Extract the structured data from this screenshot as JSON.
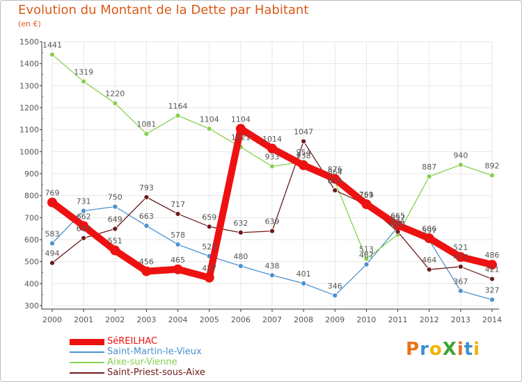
{
  "header": {
    "title": "Evolution du Montant de la Dette par Habitant",
    "subtitle": "(en €)"
  },
  "logo": {
    "text": "ProXiti",
    "colors": [
      "#e8721c",
      "#3b8fd0",
      "#f2b200",
      "#3fa535",
      "#e8721c",
      "#3b8fd0",
      "#f2b200"
    ]
  },
  "colors": {
    "title": "#d95a17",
    "axis": "#555555",
    "grid": "#e6e6e6"
  },
  "chart_data": {
    "type": "line",
    "x": [
      "2000",
      "2001",
      "2002",
      "2003",
      "2004",
      "2005",
      "2006",
      "2007",
      "2008",
      "2009",
      "2010",
      "2011",
      "2012",
      "2013",
      "2014"
    ],
    "ylim": [
      300,
      1500
    ],
    "yticks": [
      300,
      400,
      500,
      600,
      700,
      800,
      900,
      1000,
      1100,
      1200,
      1300,
      1400,
      1500
    ],
    "title": "Evolution du Montant de la Dette par Habitant",
    "ylabel": "(en €)",
    "grid": true,
    "legend_position": "bottom-left",
    "series": [
      {
        "name": "SéREILHAC",
        "color": "#ee1111",
        "width": 9,
        "values": [
          769,
          662,
          551,
          456,
          465,
          427,
          1104,
          1014,
          938,
          876,
          761,
          665,
          606,
          521,
          486
        ]
      },
      {
        "name": "Saint-Martin-le-Vieux",
        "color": "#4a90d0",
        "width": 1,
        "values": [
          583,
          731,
          750,
          663,
          578,
          525,
          480,
          438,
          401,
          346,
          487,
          657,
          597,
          367,
          327
        ]
      },
      {
        "name": "Aixe-sur-Vienne",
        "color": "#86d04e",
        "width": 1,
        "values": [
          1441,
          1319,
          1220,
          1081,
          1164,
          1104,
          1021,
          933,
          954,
          864,
          513,
          623,
          887,
          940,
          892
        ]
      },
      {
        "name": "Saint-Priest-sous-Aixe",
        "color": "#6e1a1a",
        "width": 1,
        "values": [
          494,
          607,
          649,
          793,
          717,
          659,
          632,
          639,
          1047,
          824,
          759,
          636,
          464,
          477,
          421
        ]
      }
    ]
  }
}
